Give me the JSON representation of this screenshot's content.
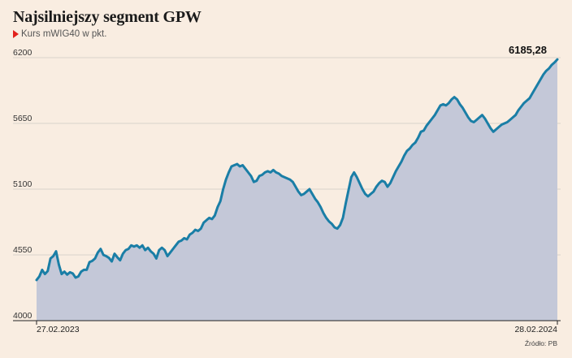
{
  "header": {
    "title": "Najsilniejszy segment GPW",
    "subtitle": "Kurs mWIG40 w pkt."
  },
  "source": "Źródło: PB",
  "colors": {
    "line": "#1a7ea6",
    "area": "#c4c8d8",
    "grid": "#d9d2ca",
    "background": "#f9ede1",
    "marker": "#e2211c"
  },
  "chart_data": {
    "type": "area",
    "title": "Najsilniejszy segment GPW",
    "subtitle": "Kurs mWIG40 w pkt.",
    "xlabel": "",
    "ylabel": "",
    "x_start_label": "27.02.2023",
    "x_end_label": "28.02.2024",
    "ylim": [
      4000,
      6200
    ],
    "yticks": [
      4000,
      4550,
      5100,
      5650,
      6200
    ],
    "ytick_labels": [
      "4000",
      "4550",
      "5100",
      "5650",
      "6200"
    ],
    "grid": true,
    "last_value_label": "6185,28",
    "values": [
      4340,
      4370,
      4425,
      4390,
      4415,
      4520,
      4540,
      4580,
      4470,
      4390,
      4410,
      4385,
      4405,
      4395,
      4360,
      4370,
      4410,
      4425,
      4425,
      4490,
      4500,
      4520,
      4570,
      4600,
      4550,
      4540,
      4525,
      4495,
      4560,
      4530,
      4505,
      4560,
      4590,
      4600,
      4630,
      4620,
      4630,
      4610,
      4630,
      4590,
      4610,
      4580,
      4560,
      4520,
      4590,
      4610,
      4590,
      4540,
      4570,
      4600,
      4630,
      4660,
      4670,
      4690,
      4680,
      4720,
      4735,
      4760,
      4750,
      4770,
      4820,
      4840,
      4860,
      4850,
      4880,
      4950,
      5000,
      5100,
      5180,
      5240,
      5290,
      5300,
      5310,
      5290,
      5300,
      5270,
      5240,
      5210,
      5160,
      5170,
      5210,
      5220,
      5240,
      5250,
      5240,
      5260,
      5240,
      5230,
      5210,
      5200,
      5190,
      5180,
      5160,
      5120,
      5080,
      5050,
      5060,
      5080,
      5100,
      5060,
      5020,
      4990,
      4950,
      4900,
      4860,
      4830,
      4810,
      4780,
      4770,
      4800,
      4860,
      4980,
      5090,
      5200,
      5240,
      5200,
      5150,
      5100,
      5060,
      5040,
      5060,
      5080,
      5120,
      5150,
      5170,
      5160,
      5120,
      5150,
      5200,
      5250,
      5290,
      5330,
      5380,
      5420,
      5440,
      5470,
      5490,
      5530,
      5580,
      5590,
      5630,
      5660,
      5690,
      5720,
      5760,
      5800,
      5810,
      5800,
      5820,
      5850,
      5870,
      5850,
      5810,
      5780,
      5740,
      5700,
      5670,
      5660,
      5680,
      5700,
      5720,
      5690,
      5650,
      5610,
      5580,
      5600,
      5620,
      5640,
      5650,
      5660,
      5680,
      5700,
      5720,
      5760,
      5790,
      5820,
      5840,
      5860,
      5900,
      5940,
      5980,
      6020,
      6060,
      6090,
      6110,
      6140,
      6160,
      6185.28
    ]
  }
}
